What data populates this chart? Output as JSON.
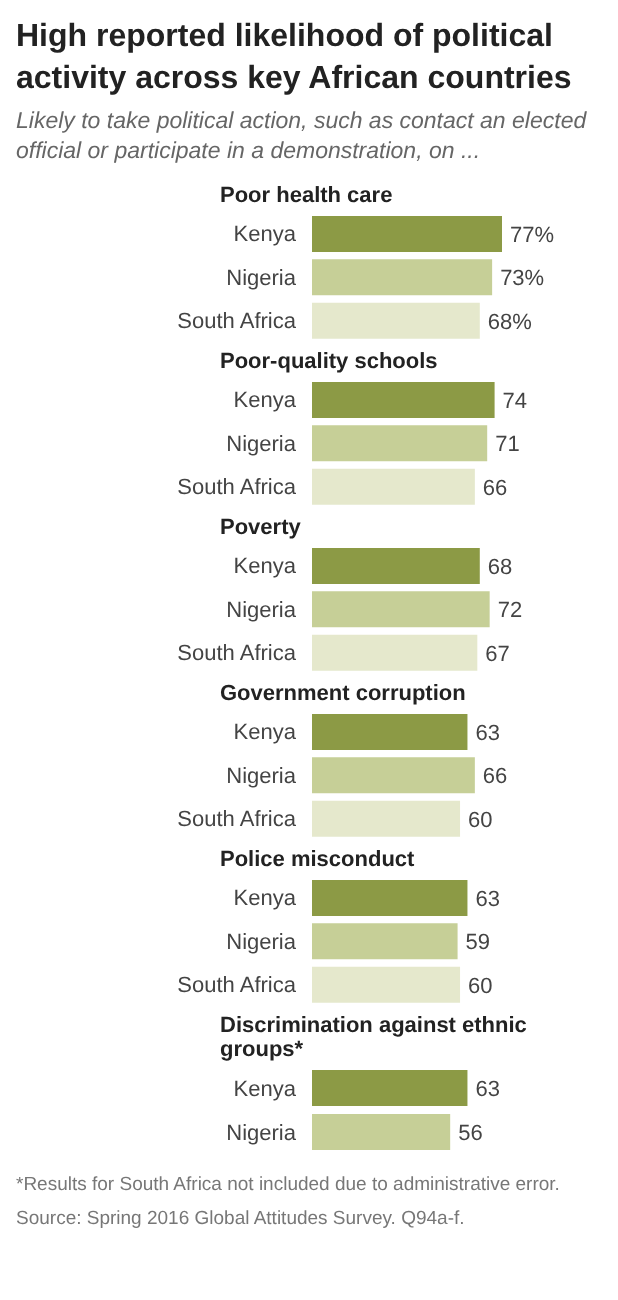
{
  "chart_data": [
    {
      "type": "bar",
      "orientation": "horizontal",
      "title": "High reported likelihood of political activity across key African countries",
      "subtitle": "Likely to take political action, such as contact an elected official or participate in a demonstration, on ...",
      "xlabel": "Poor health care",
      "categories": [
        "Kenya",
        "Nigeria",
        "South Africa"
      ],
      "values": [
        77,
        73,
        68
      ],
      "colors": [
        "#8c9a45",
        "#c6cf97",
        "#e5e8cc"
      ],
      "value_labels": [
        "77%",
        "73%",
        "68%"
      ],
      "tick_labels": "y"
    },
    {
      "type": "bar",
      "orientation": "horizontal",
      "xlabel": "Poor-quality schools",
      "categories": [
        "Kenya",
        "Nigeria",
        "South Africa"
      ],
      "values": [
        74,
        71,
        66
      ],
      "colors": [
        "#8c9a45",
        "#c6cf97",
        "#e5e8cc"
      ],
      "data_labels": true,
      "tick_labels": "y"
    },
    {
      "type": "bar",
      "orientation": "horizontal",
      "xlabel": "Poverty",
      "categories": [
        "Kenya",
        "Nigeria",
        "South Africa"
      ],
      "values": [
        68,
        72,
        67
      ],
      "colors": [
        "#8c9a45",
        "#c6cf97",
        "#e5e8cc"
      ],
      "data_labels": true,
      "tick_labels": "y"
    },
    {
      "type": "bar",
      "orientation": "horizontal",
      "xlabel": "Government corruption",
      "categories": [
        "Kenya",
        "Nigeria",
        "South Africa"
      ],
      "values": [
        63,
        66,
        60
      ],
      "colors": [
        "#8c9a45",
        "#c6cf97",
        "#e5e8cc"
      ],
      "data_labels": true,
      "tick_labels": "y"
    },
    {
      "type": "bar",
      "orientation": "horizontal",
      "xlabel": "Police misconduct",
      "categories": [
        "Kenya",
        "Nigeria",
        "South Africa"
      ],
      "values": [
        63,
        59,
        60
      ],
      "colors": [
        "#8c9a45",
        "#c6cf97",
        "#e5e8cc"
      ],
      "data_labels": true,
      "tick_labels": "y"
    },
    {
      "type": "bar",
      "orientation": "horizontal",
      "xlabel": "Discrimination against ethnic groups*",
      "categories": [
        "Kenya",
        "Nigeria"
      ],
      "values": [
        63,
        56
      ],
      "colors": [
        "#8c9a45",
        "#c6cf97"
      ],
      "data_labels": true,
      "tick_labels": "y",
      "annotations": [
        "*Results for South Africa not included due to administrative error.",
        "Source: Spring 2016 Global Attitudes Survey. Q94a-f."
      ]
    }
  ]
}
